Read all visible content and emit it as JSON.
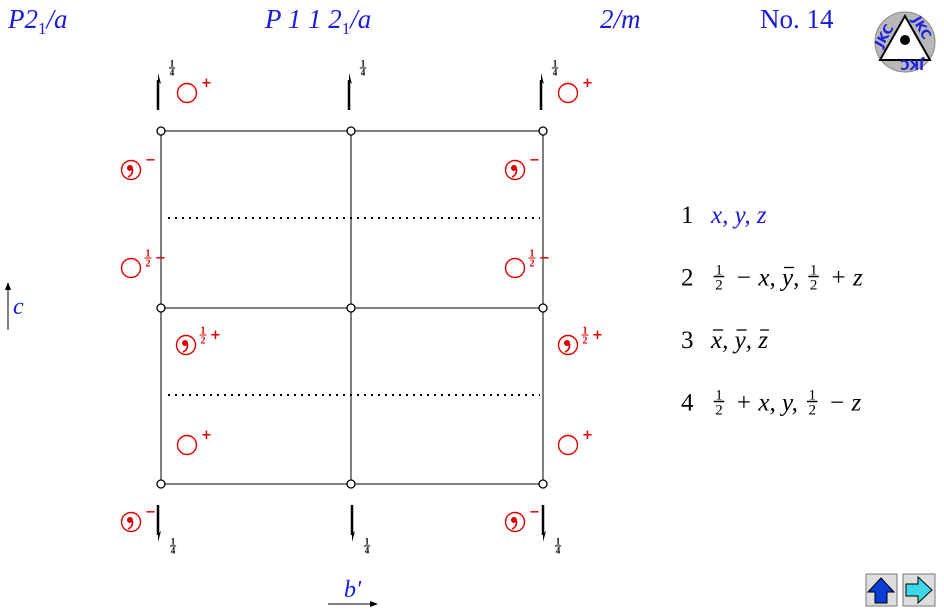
{
  "header": {
    "short_symbol": [
      "P2",
      "1",
      "/a"
    ],
    "full_symbol": [
      "P 1 1 2",
      "1",
      "/a"
    ],
    "point_group": "2/m",
    "number": "No. 14"
  },
  "logo": "JKC",
  "axes": {
    "vertical": "c",
    "horizontal": "b′"
  },
  "screw_height": {
    "num": "1",
    "den": "4"
  },
  "half": {
    "num": "1",
    "den": "2"
  },
  "signs": {
    "plus": "+",
    "minus": "−"
  },
  "positions": [
    {
      "index": "1",
      "color": "#1a1adc",
      "coords": [
        "x, y, z"
      ]
    },
    {
      "index": "2",
      "color": "#000000",
      "coords": [
        {
          "num": "1",
          "den": "2"
        },
        " − x, ",
        {
          "bar": "y"
        },
        ", ",
        {
          "num": "1",
          "den": "2"
        },
        " + z"
      ]
    },
    {
      "index": "3",
      "color": "#000000",
      "coords": [
        {
          "bar": "x"
        },
        ", ",
        {
          "bar": "y"
        },
        ", ",
        {
          "bar": "z"
        }
      ]
    },
    {
      "index": "4",
      "color": "#000000",
      "coords": [
        {
          "num": "1",
          "den": "2"
        },
        " + x, y, ",
        {
          "num": "1",
          "den": "2"
        },
        " − z"
      ]
    }
  ]
}
